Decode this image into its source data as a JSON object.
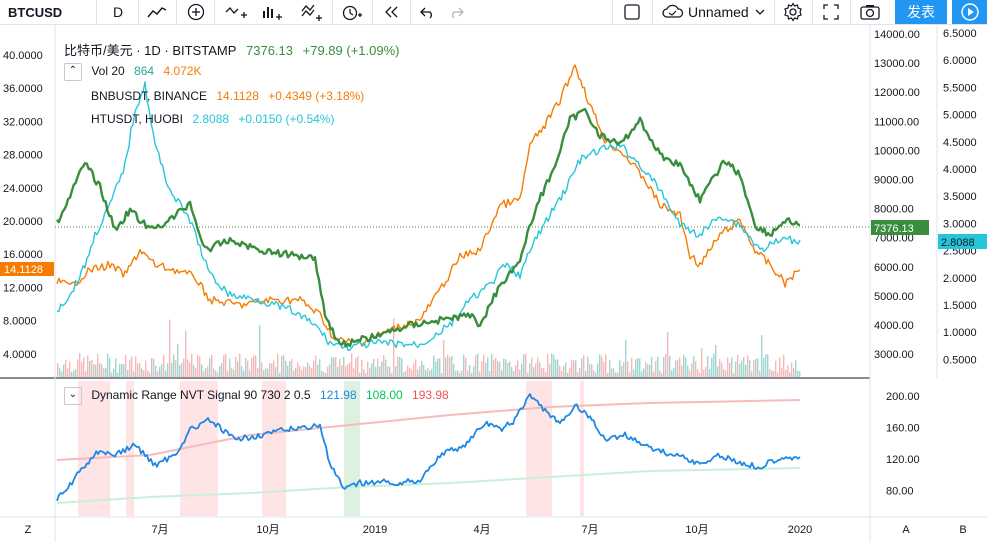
{
  "toolbar": {
    "symbol": "BTCUSD",
    "interval": "D",
    "layout_name": "Unnamed",
    "publish_label": "发表"
  },
  "legend": {
    "main_title": "比特币/美元 · 1D · BITSTAMP",
    "main_price": "7376.13",
    "main_change": "+79.89 (+1.09%)",
    "vol_label": "Vol 20",
    "vol_value_1": "864",
    "vol_value_2": "4.072K",
    "bnb_label": "BNBUSDT, BINANCE",
    "bnb_price": "14.1128",
    "bnb_change": "+0.4349 (+3.18%)",
    "ht_label": "HTUSDT, HUOBI",
    "ht_price": "2.8088",
    "ht_change": "+0.0150 (+0.54%)",
    "indicator_label": "Dynamic Range NVT Signal 90 730 2 0.5",
    "indicator_v1": "121.98",
    "indicator_v2": "108.00",
    "indicator_v3": "193.98"
  },
  "colors": {
    "btc": "#388e3c",
    "bnb": "#f57c00",
    "ht": "#26c6da",
    "nvt": "#1e88e5",
    "nvt_upper": "#f8bbbb",
    "nvt_lower": "#c8f0d8",
    "vol_up": "#9fd6cf",
    "vol_down": "#f7b7b7"
  },
  "price_labels": {
    "btc_last": "7376.13",
    "bnb_last": "14.1128",
    "ht_last": "2.8088"
  },
  "axes": {
    "left_ticks": [
      "40.0000",
      "36.0000",
      "32.0000",
      "28.0000",
      "24.0000",
      "20.0000",
      "16.0000",
      "12.0000",
      "8.0000",
      "4.0000"
    ],
    "right_ticks": [
      "14000.00",
      "13000.00",
      "12000.00",
      "11000.00",
      "10000.00",
      "9000.00",
      "8000.00",
      "7000.00",
      "6000.00",
      "5000.00",
      "4000.00",
      "3000.00"
    ],
    "right2_ticks": [
      "6.5000",
      "6.0000",
      "5.5000",
      "5.0000",
      "4.5000",
      "4.0000",
      "3.5000",
      "3.0000",
      "2.5000",
      "2.0000",
      "1.5000",
      "1.0000",
      "0.5000"
    ],
    "indicator_ticks": [
      "200.00",
      "160.00",
      "120.00",
      "80.00"
    ],
    "time_ticks": [
      "7月",
      "10月",
      "2019",
      "4月",
      "7月",
      "10月",
      "2020"
    ]
  },
  "bottom": {
    "z": "Z",
    "a": "A",
    "b": "B"
  }
}
